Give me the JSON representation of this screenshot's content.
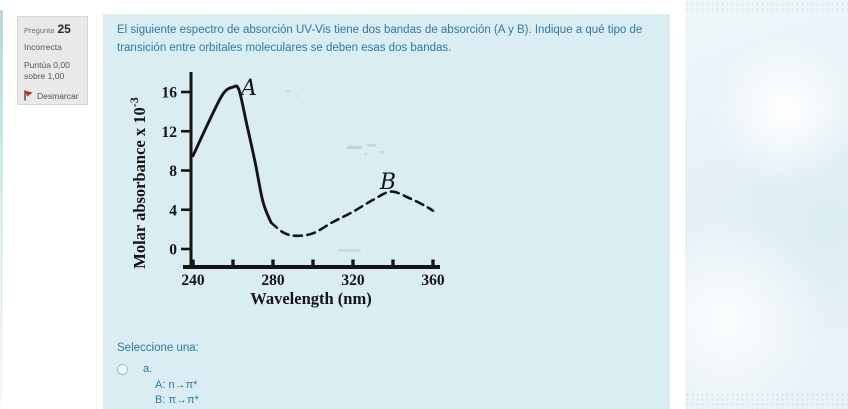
{
  "question_info": {
    "label": "Pregunta",
    "number": "25",
    "status": "Incorrecta",
    "grade_line1": "Puntúa 0,00",
    "grade_line2": "sobre 1,00",
    "flag_action": "Desmarcar"
  },
  "question": {
    "text": "El siguiente espectro de absorción UV-Vis tiene dos bandas de absorción (A y B). Indique a qué tipo de transición entre orbitales moleculares se deben esas dos bandas.",
    "prompt": "Seleccione una:",
    "options": [
      {
        "key": "a.",
        "lines": [
          "A: n→π*",
          "B: π→π*"
        ]
      }
    ]
  },
  "chart_data": {
    "type": "line",
    "title": "",
    "xlabel": "Wavelength (nm)",
    "ylabel": "Molar absorbance x 10⁻³",
    "ylabel_base": "Molar absorbance x 10",
    "ylabel_exp": "-3",
    "xlim": [
      240,
      360
    ],
    "ylim": [
      0,
      17
    ],
    "grid": false,
    "x_ticks": [
      240,
      260,
      280,
      300,
      320,
      340,
      360
    ],
    "x_tick_labels": [
      "240",
      "280",
      "320",
      "360"
    ],
    "y_ticks": [
      0,
      4,
      8,
      12,
      16
    ],
    "series": [
      {
        "name": "Band A",
        "style": "solid",
        "x": [
          240,
          248,
          255,
          260,
          263,
          267,
          271,
          275,
          279
        ],
        "y": [
          9.5,
          13.0,
          15.8,
          16.5,
          16.2,
          12.6,
          8.9,
          4.8,
          2.7
        ]
      },
      {
        "name": "Band B",
        "style": "dashed",
        "x": [
          279,
          285,
          291,
          300,
          310,
          320,
          330,
          339,
          348,
          356,
          360
        ],
        "y": [
          2.7,
          1.7,
          1.35,
          1.6,
          2.75,
          3.8,
          5.0,
          5.85,
          5.2,
          4.4,
          3.9
        ]
      }
    ],
    "annotations": [
      {
        "text": "A",
        "x": 268.0,
        "y": 15.7
      },
      {
        "text": "B",
        "x": 337.5,
        "y": 6.1
      }
    ]
  },
  "colors": {
    "question_text": "#2e7aa3",
    "question_bg": "#d9edf3",
    "panel_bg": "#e9e9e9",
    "chart_ink": "#151515",
    "flag_red": "#c03028"
  }
}
